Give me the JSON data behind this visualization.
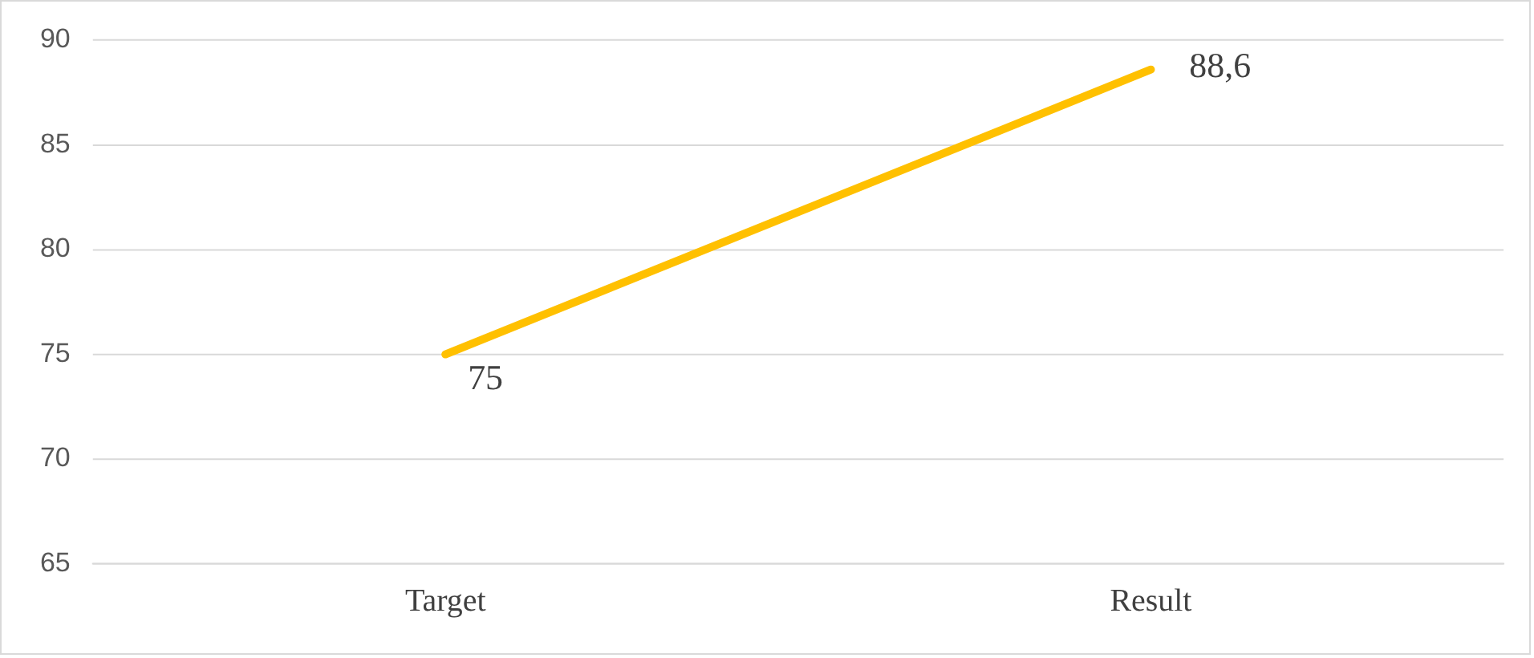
{
  "chart_data": {
    "type": "line",
    "categories": [
      "Target",
      "Result"
    ],
    "series": [
      {
        "color": "#ffc000",
        "values": [
          75,
          88.6
        ],
        "value_labels": [
          "75",
          "88,6"
        ]
      }
    ],
    "ylim": [
      65,
      90
    ],
    "yticks": [
      65,
      70,
      75,
      80,
      85,
      90
    ],
    "grid": "y",
    "legend": false,
    "marker": "none",
    "line_style": "solid"
  }
}
